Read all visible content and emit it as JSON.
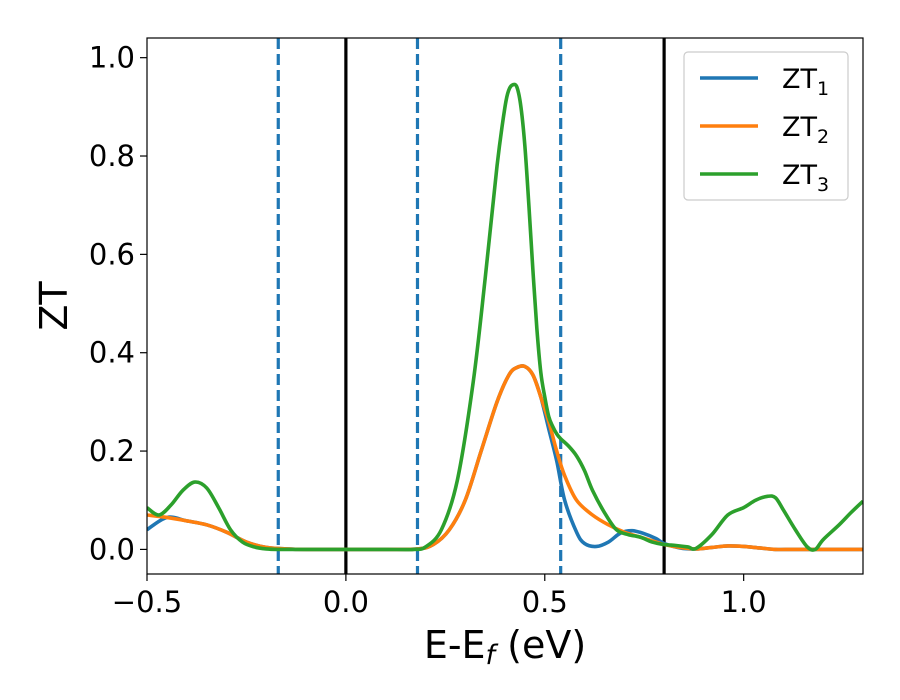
{
  "chart_data": {
    "type": "line",
    "xlabel": "E-E",
    "xlabel_sub": "f",
    "xlabel_unit": " (eV)",
    "ylabel": "ZT",
    "xlim": [
      -0.5,
      1.3
    ],
    "ylim": [
      -0.05,
      1.04
    ],
    "xticks": [
      {
        "v": -0.5,
        "label": "−0.5"
      },
      {
        "v": 0.0,
        "label": "0.0"
      },
      {
        "v": 0.5,
        "label": "0.5"
      },
      {
        "v": 1.0,
        "label": "1.0"
      }
    ],
    "yticks": [
      {
        "v": 0.0,
        "label": "0.0"
      },
      {
        "v": 0.2,
        "label": "0.2"
      },
      {
        "v": 0.4,
        "label": "0.4"
      },
      {
        "v": 0.6,
        "label": "0.6"
      },
      {
        "v": 0.8,
        "label": "0.8"
      },
      {
        "v": 1.0,
        "label": "1.0"
      }
    ],
    "grid": false,
    "legend_position": "top-right",
    "vertical_lines": [
      {
        "x": -0.17,
        "style": "dashed",
        "color": "#1f77b4"
      },
      {
        "x": 0.0,
        "style": "solid",
        "color": "#000000"
      },
      {
        "x": 0.18,
        "style": "dashed",
        "color": "#1f77b4"
      },
      {
        "x": 0.54,
        "style": "dashed",
        "color": "#1f77b4"
      },
      {
        "x": 0.8,
        "style": "solid",
        "color": "#000000"
      }
    ],
    "series": [
      {
        "name": "ZT",
        "sub": "1",
        "color": "#1f77b4",
        "x": [
          -0.5,
          -0.45,
          -0.4,
          -0.35,
          -0.3,
          -0.25,
          -0.2,
          -0.15,
          -0.1,
          0.0,
          0.1,
          0.18,
          0.22,
          0.26,
          0.3,
          0.34,
          0.38,
          0.41,
          0.43,
          0.45,
          0.47,
          0.49,
          0.51,
          0.53,
          0.55,
          0.58,
          0.6,
          0.63,
          0.66,
          0.69,
          0.72,
          0.75,
          0.78,
          0.8,
          0.84,
          0.88,
          0.92,
          0.96,
          1.0,
          1.04,
          1.08,
          1.12,
          1.16,
          1.2,
          1.25,
          1.3
        ],
        "y": [
          0.04,
          0.065,
          0.058,
          0.05,
          0.035,
          0.015,
          0.004,
          0.001,
          0.0,
          0.0,
          0.0,
          0.001,
          0.01,
          0.04,
          0.1,
          0.2,
          0.3,
          0.355,
          0.37,
          0.372,
          0.355,
          0.31,
          0.245,
          0.18,
          0.1,
          0.035,
          0.012,
          0.006,
          0.015,
          0.033,
          0.038,
          0.032,
          0.022,
          0.012,
          0.003,
          0.001,
          0.004,
          0.007,
          0.006,
          0.003,
          0.0,
          0.0,
          0.0,
          0.0,
          0.0,
          0.0
        ]
      },
      {
        "name": "ZT",
        "sub": "2",
        "color": "#ff7f0e",
        "x": [
          -0.5,
          -0.45,
          -0.4,
          -0.35,
          -0.3,
          -0.25,
          -0.2,
          -0.15,
          -0.1,
          0.0,
          0.1,
          0.18,
          0.22,
          0.26,
          0.3,
          0.34,
          0.38,
          0.41,
          0.43,
          0.45,
          0.47,
          0.49,
          0.51,
          0.53,
          0.55,
          0.58,
          0.62,
          0.66,
          0.7,
          0.74,
          0.78,
          0.8,
          0.84,
          0.88,
          0.92,
          0.96,
          1.0,
          1.04,
          1.08,
          1.12,
          1.16,
          1.2,
          1.25,
          1.3
        ],
        "y": [
          0.07,
          0.065,
          0.058,
          0.05,
          0.035,
          0.015,
          0.004,
          0.001,
          0.0,
          0.0,
          0.0,
          0.001,
          0.01,
          0.04,
          0.1,
          0.2,
          0.3,
          0.355,
          0.37,
          0.372,
          0.355,
          0.31,
          0.26,
          0.2,
          0.15,
          0.1,
          0.07,
          0.05,
          0.035,
          0.025,
          0.015,
          0.01,
          0.004,
          0.001,
          0.004,
          0.007,
          0.006,
          0.003,
          0.0,
          0.0,
          0.0,
          0.0,
          0.0,
          0.0
        ]
      },
      {
        "name": "ZT",
        "sub": "3",
        "color": "#2ca02c",
        "x": [
          -0.5,
          -0.47,
          -0.44,
          -0.41,
          -0.38,
          -0.35,
          -0.32,
          -0.29,
          -0.26,
          -0.23,
          -0.2,
          -0.17,
          -0.1,
          0.0,
          0.1,
          0.17,
          0.2,
          0.24,
          0.28,
          0.32,
          0.35,
          0.38,
          0.4,
          0.41,
          0.42,
          0.43,
          0.44,
          0.45,
          0.46,
          0.47,
          0.48,
          0.49,
          0.5,
          0.51,
          0.52,
          0.53,
          0.54,
          0.56,
          0.58,
          0.6,
          0.62,
          0.65,
          0.68,
          0.71,
          0.74,
          0.77,
          0.8,
          0.83,
          0.86,
          0.88,
          0.92,
          0.96,
          1.0,
          1.03,
          1.06,
          1.08,
          1.1,
          1.13,
          1.16,
          1.18,
          1.2,
          1.24,
          1.27,
          1.3
        ],
        "y": [
          0.085,
          0.07,
          0.09,
          0.12,
          0.137,
          0.125,
          0.085,
          0.04,
          0.015,
          0.005,
          0.001,
          0.0,
          0.0,
          0.0,
          0.0,
          0.0,
          0.005,
          0.04,
          0.14,
          0.34,
          0.55,
          0.78,
          0.9,
          0.935,
          0.945,
          0.94,
          0.9,
          0.82,
          0.7,
          0.57,
          0.45,
          0.36,
          0.31,
          0.27,
          0.25,
          0.235,
          0.225,
          0.21,
          0.19,
          0.16,
          0.12,
          0.075,
          0.04,
          0.03,
          0.025,
          0.015,
          0.01,
          0.008,
          0.005,
          0.002,
          0.03,
          0.07,
          0.085,
          0.1,
          0.108,
          0.105,
          0.08,
          0.04,
          0.005,
          0.0,
          0.02,
          0.05,
          0.075,
          0.098
        ]
      }
    ]
  }
}
